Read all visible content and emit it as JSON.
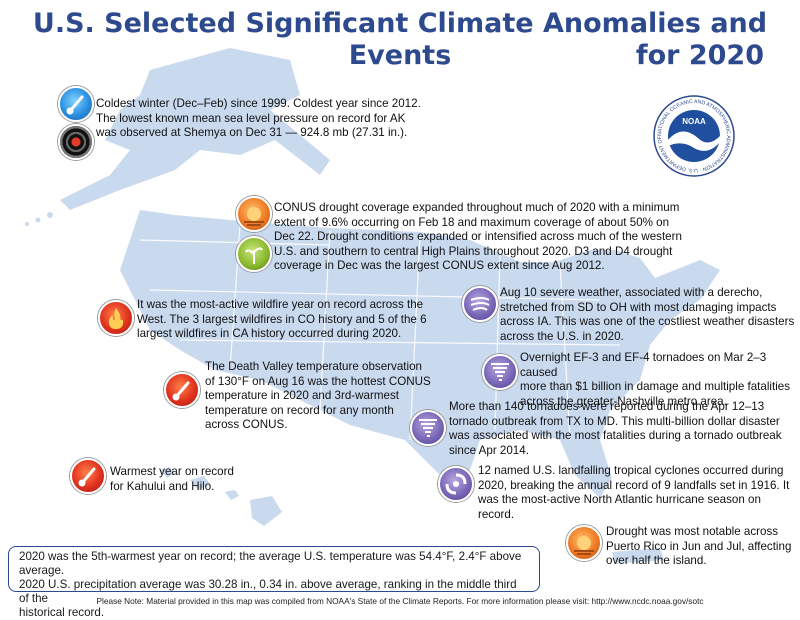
{
  "title": {
    "line1": "U.S. Selected Significant Climate Anomalies and Events",
    "line2": "for 2020"
  },
  "logo": {
    "name": "NOAA",
    "ring_text": "NATIONAL OCEANIC AND ATMOSPHERIC ADMINISTRATION · U.S. DEPARTMENT OF COMMERCE"
  },
  "events": {
    "alaska": {
      "lines": [
        "Coldest winter (Dec–Feb) since 1999. Coldest year since 2012.",
        "The lowest known mean sea level pressure on record for AK",
        "was observed at Shemya on Dec 31 — 924.8 mb (27.31 in.)."
      ],
      "icons": [
        "thermometer-cold-icon",
        "low-pressure-icon"
      ]
    },
    "drought": {
      "lines": [
        "CONUS drought coverage expanded throughout much of 2020 with a minimum",
        "extent of 9.6% occurring on Feb 18 and maximum coverage of about 50% on",
        "Dec 22. Drought conditions expanded or intensified across much of the western",
        "U.S. and southern to central High Plains throughout 2020.  D3 and D4 drought",
        "coverage in Dec was the largest CONUS extent since Aug 2012."
      ],
      "icons": [
        "drought-sun-icon",
        "agriculture-plant-icon"
      ]
    },
    "wildfire": {
      "lines": [
        "It was the most-active wildfire year on record across the",
        "West. The 3 largest wildfires in CO history and 5 of the 6",
        "largest wildfires in CA history occurred during 2020."
      ],
      "icon": "wildfire-icon"
    },
    "death_valley": {
      "lines": [
        "The Death Valley temperature observation",
        "of 130°F on Aug 16 was the hottest CONUS",
        "temperature in 2020 and 3rd-warmest",
        "temperature on record for any month",
        "across CONUS."
      ],
      "icon": "thermometer-hot-icon"
    },
    "hawaii": {
      "lines": [
        "Warmest year on record",
        "for Kahului and Hilo."
      ],
      "icon": "thermometer-hot-icon"
    },
    "derecho": {
      "lines": [
        "Aug 10 severe weather, associated with a derecho,",
        "stretched from SD to OH with most damaging impacts",
        "across IA. This was one of the costliest weather disasters",
        "across the U.S. in 2020."
      ],
      "icon": "severe-wind-icon"
    },
    "nashville": {
      "lines": [
        "Overnight EF-3 and EF-4 tornadoes on Mar 2–3 caused",
        "more than $1 billion in damage and multiple fatalities",
        "across the greater-Nashville metro area."
      ],
      "icon": "tornado-icon"
    },
    "tornado_outbreak": {
      "lines": [
        "More than 140 tornadoes were reported during the Apr 12–13",
        "tornado outbreak from TX to MD. This multi-billion dollar disaster",
        "was associated with the most fatalities during a tornado outbreak",
        "since Apr 2014."
      ],
      "icon": "tornado-icon"
    },
    "hurricane": {
      "lines": [
        "12 named U.S. landfalling tropical cyclones occurred during",
        "2020, breaking the annual record of 9 landfalls set in 1916. It",
        "was the most-active North Atlantic hurricane season on record."
      ],
      "icon": "hurricane-icon"
    },
    "puerto_rico": {
      "lines": [
        "Drought was most notable across",
        "Puerto Rico in Jun and Jul, affecting",
        "over half the island."
      ],
      "icon": "drought-sun-icon"
    }
  },
  "summary": {
    "lines": [
      "2020 was the 5th-warmest year on record; the average U.S. temperature was 54.4°F, 2.4°F above average.",
      "2020 U.S. precipitation average was 30.28 in., 0.34 in. above average, ranking in the middle third of the",
      "historical record."
    ]
  },
  "footer": "Please Note: Material provided in this map was compiled from NOAA's State of the Climate Reports. For more information please visit: http://www.ncdc.noaa.gov/sotc",
  "colors": {
    "title": "#2e4a8f",
    "map_fill": "#c9d9ee",
    "map_stroke": "#ffffff"
  }
}
